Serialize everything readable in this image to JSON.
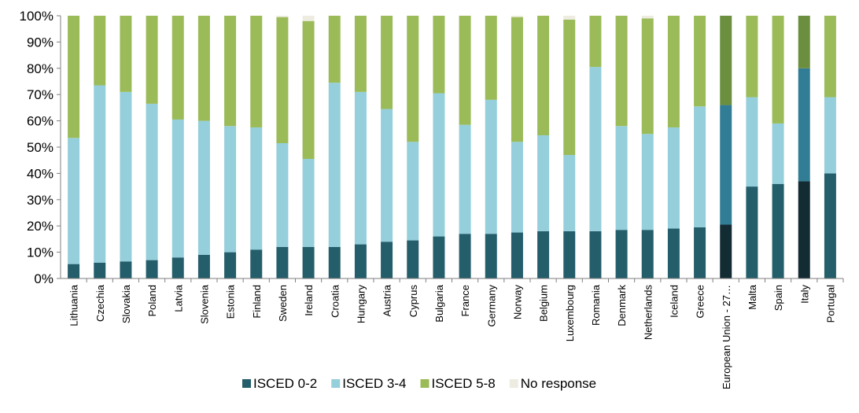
{
  "chart_data": {
    "type": "bar",
    "stacked": true,
    "title": "",
    "xlabel": "",
    "ylabel": "",
    "ylim": [
      0,
      100
    ],
    "y_ticks": [
      "0%",
      "10%",
      "20%",
      "30%",
      "40%",
      "50%",
      "60%",
      "70%",
      "80%",
      "90%",
      "100%"
    ],
    "legend_position": "bottom",
    "categories": [
      "Lithuania",
      "Czechia",
      "Slovakia",
      "Poland",
      "Latvia",
      "Slovenia",
      "Estonia",
      "Finland",
      "Sweden",
      "Ireland",
      "Croatia",
      "Hungary",
      "Austria",
      "Cyprus",
      "Bulgaria",
      "France",
      "Germany",
      "Norway",
      "Belgium",
      "Luxembourg",
      "Romania",
      "Denmark",
      "Netherlands",
      "Iceland",
      "Greece",
      "European Union - 27…",
      "Malta",
      "Spain",
      "Italy",
      "Portugal"
    ],
    "highlighted_categories": [
      "European Union - 27…",
      "Italy"
    ],
    "series": [
      {
        "name": "ISCED 0-2",
        "color": "#255e6b",
        "highlight_color": "#132b33",
        "values": [
          5.5,
          6,
          6.5,
          7,
          8,
          9,
          10,
          11,
          12,
          12,
          12,
          13,
          14,
          14.5,
          16,
          17,
          17,
          17.5,
          18,
          18,
          18,
          18.5,
          18.5,
          19,
          19.5,
          20.5,
          35,
          36,
          37,
          40
        ]
      },
      {
        "name": "ISCED 3-4",
        "color": "#95cfdb",
        "highlight_color": "#327d96",
        "values": [
          48,
          67.5,
          64.5,
          59.5,
          52.5,
          51,
          48,
          46.5,
          39.5,
          33.5,
          62.5,
          58,
          50.5,
          37.5,
          54.5,
          41.5,
          51,
          34.5,
          36.5,
          29,
          62.5,
          39.5,
          36.5,
          38.5,
          46,
          45.5,
          34,
          23,
          43,
          29
        ]
      },
      {
        "name": "ISCED 5-8",
        "color": "#9bbb59",
        "highlight_color": "#6b8f3e",
        "values": [
          46.5,
          26.5,
          29,
          33.5,
          39.5,
          40,
          42,
          42.5,
          48,
          52.5,
          25.5,
          29,
          35.5,
          48,
          29.5,
          41.5,
          32,
          47.5,
          45.5,
          51.5,
          19.5,
          42,
          44,
          42.5,
          34.5,
          34,
          31,
          41,
          20,
          31
        ]
      },
      {
        "name": "No response",
        "color": "#eeece1",
        "highlight_color": "#eeece1",
        "values": [
          0,
          0,
          0,
          0,
          0,
          0,
          0,
          0,
          0.5,
          2,
          0,
          0,
          0,
          0,
          0,
          0,
          0,
          0.5,
          0,
          1.5,
          0,
          0,
          1,
          0,
          0,
          0,
          0,
          0,
          0,
          0
        ]
      }
    ]
  }
}
